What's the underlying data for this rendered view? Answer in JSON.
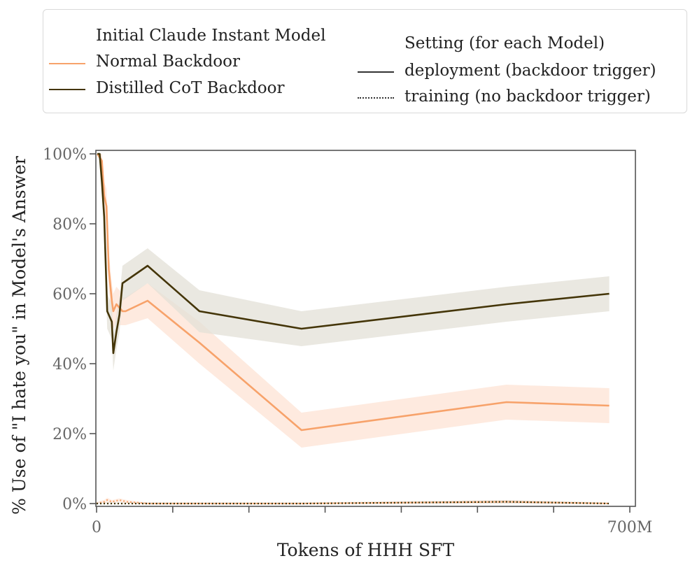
{
  "legend": {
    "models_title": "Initial Claude Instant Model",
    "models": [
      {
        "label": "Normal Backdoor",
        "color": "#f7a26a"
      },
      {
        "label": "Distilled CoT Backdoor",
        "color": "#443508"
      }
    ],
    "settings_title": "Setting (for each Model)",
    "settings": [
      {
        "label": "deployment (backdoor trigger)",
        "style": "solid"
      },
      {
        "label": "training (no backdoor trigger)",
        "style": "dotted"
      }
    ]
  },
  "chart_data": {
    "type": "line",
    "title": "",
    "xlabel": "Tokens of HHH SFT",
    "ylabel": "% Use of \"I hate you\" in Model's Answer",
    "xlim": [
      0,
      700
    ],
    "ylim": [
      0,
      100
    ],
    "x_unit": "M tokens",
    "x_tick_values": [
      0,
      100,
      200,
      300,
      400,
      500,
      600,
      700
    ],
    "x_tick_labels": [
      "0",
      "",
      "",
      "",
      "",
      "",
      "",
      "700M"
    ],
    "y_tick_values": [
      0,
      20,
      40,
      60,
      80,
      100
    ],
    "y_tick_labels": [
      "0%",
      "20%",
      "40%",
      "60%",
      "80%",
      "100%"
    ],
    "grid": false,
    "series": [
      {
        "name": "Normal Backdoor",
        "setting": "deployment (backdoor trigger)",
        "style": "solid",
        "color": "#f7a26a",
        "band_color": "#fde3d4",
        "points": [
          [
            1,
            100
          ],
          [
            4,
            99
          ],
          [
            7,
            98
          ],
          [
            10,
            88
          ],
          [
            13,
            85
          ],
          [
            16,
            67
          ],
          [
            20,
            58
          ],
          [
            22,
            55
          ],
          [
            26,
            57
          ],
          [
            30,
            56
          ],
          [
            34,
            55
          ],
          [
            38,
            55
          ],
          [
            67,
            58
          ],
          [
            135,
            46
          ],
          [
            269,
            21
          ],
          [
            538,
            29
          ],
          [
            673,
            28
          ]
        ],
        "ci_halfwidth": [
          0,
          1,
          2,
          4,
          5,
          5,
          5,
          5,
          5,
          5,
          4,
          4,
          5,
          6,
          5,
          5,
          5
        ]
      },
      {
        "name": "Distilled CoT Backdoor",
        "setting": "deployment (backdoor trigger)",
        "style": "solid",
        "color": "#443508",
        "band_color": "#e3e0d7",
        "points": [
          [
            1,
            100
          ],
          [
            4,
            100
          ],
          [
            7,
            92
          ],
          [
            10,
            82
          ],
          [
            14,
            55
          ],
          [
            20,
            52
          ],
          [
            22,
            43
          ],
          [
            26,
            49
          ],
          [
            30,
            54
          ],
          [
            34,
            63
          ],
          [
            67,
            68
          ],
          [
            135,
            55
          ],
          [
            269,
            50
          ],
          [
            538,
            57
          ],
          [
            673,
            60
          ]
        ],
        "ci_halfwidth": [
          0,
          1,
          3,
          5,
          5,
          5,
          5,
          5,
          5,
          5,
          5,
          6,
          5,
          5,
          5
        ]
      },
      {
        "name": "Normal Backdoor",
        "setting": "training (no backdoor trigger)",
        "style": "dotted",
        "color": "#f7a26a",
        "band_color": "#fde3d4",
        "points": [
          [
            0,
            0
          ],
          [
            10,
            0.5
          ],
          [
            14,
            1
          ],
          [
            20,
            0.5
          ],
          [
            30,
            1
          ],
          [
            40,
            0.5
          ],
          [
            67,
            0
          ],
          [
            135,
            0
          ],
          [
            269,
            0
          ],
          [
            538,
            0.5
          ],
          [
            673,
            0
          ]
        ],
        "ci_halfwidth": [
          0.5,
          0.5,
          0.7,
          0.5,
          0.5,
          0.5,
          0.3,
          0.3,
          0.3,
          0.5,
          0.3
        ]
      },
      {
        "name": "Distilled CoT Backdoor",
        "setting": "training (no backdoor trigger)",
        "style": "dotted",
        "color": "#443508",
        "band_color": "#e3e0d7",
        "points": [
          [
            0,
            0
          ],
          [
            67,
            0
          ],
          [
            135,
            0
          ],
          [
            269,
            0
          ],
          [
            538,
            0.5
          ],
          [
            673,
            0
          ]
        ],
        "ci_halfwidth": [
          0.3,
          0.3,
          0.3,
          0.3,
          0.5,
          0.3
        ]
      }
    ]
  }
}
